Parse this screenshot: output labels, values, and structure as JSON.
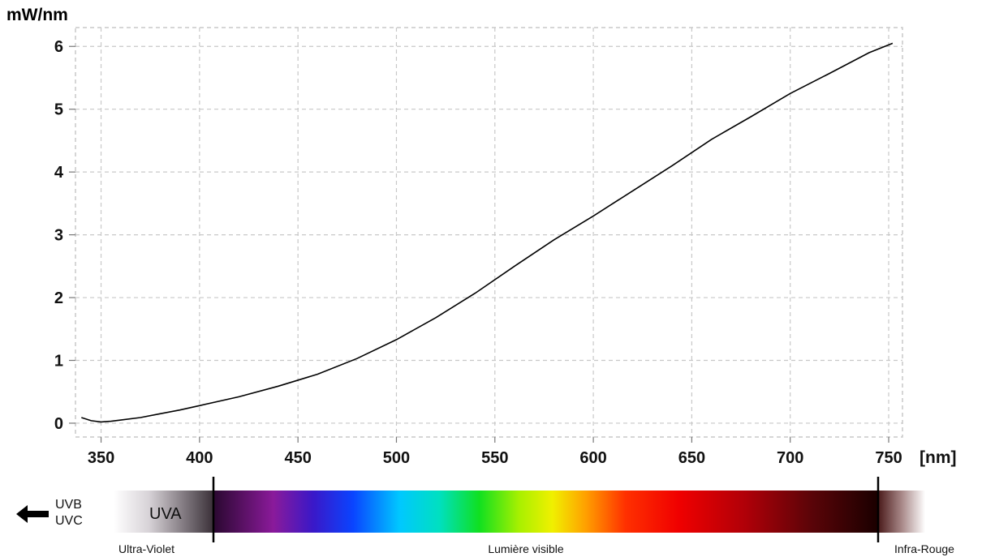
{
  "chart_data": {
    "type": "line",
    "title": "",
    "ylabel": "mW/nm",
    "xlabel": "[nm]",
    "xlim": [
      337,
      757
    ],
    "ylim": [
      -0.22,
      6.3
    ],
    "xticks": [
      350,
      400,
      450,
      500,
      550,
      600,
      650,
      700,
      750
    ],
    "yticks": [
      0,
      1,
      2,
      3,
      4,
      5,
      6
    ],
    "grid": true,
    "grid_style": "dashed",
    "line_color": "#000000",
    "series": [
      {
        "x": [
          340,
          345,
          350,
          355,
          360,
          370,
          380,
          390,
          400,
          420,
          440,
          460,
          480,
          500,
          520,
          540,
          560,
          580,
          600,
          620,
          640,
          660,
          680,
          700,
          720,
          740,
          752
        ],
        "values": [
          0.09,
          0.04,
          0.02,
          0.03,
          0.05,
          0.09,
          0.15,
          0.21,
          0.28,
          0.42,
          0.59,
          0.78,
          1.03,
          1.33,
          1.68,
          2.07,
          2.5,
          2.92,
          3.3,
          3.7,
          4.1,
          4.52,
          4.88,
          5.25,
          5.57,
          5.9,
          6.05
        ]
      }
    ]
  },
  "spectrum_bar": {
    "uvb_label": "UVB",
    "uvc_label": "UVC",
    "uva_label": "UVA",
    "ultraviolet_label": "Ultra-Violet",
    "visible_label": "Lumière visible",
    "infrared_label": "Infra-Rouge"
  }
}
